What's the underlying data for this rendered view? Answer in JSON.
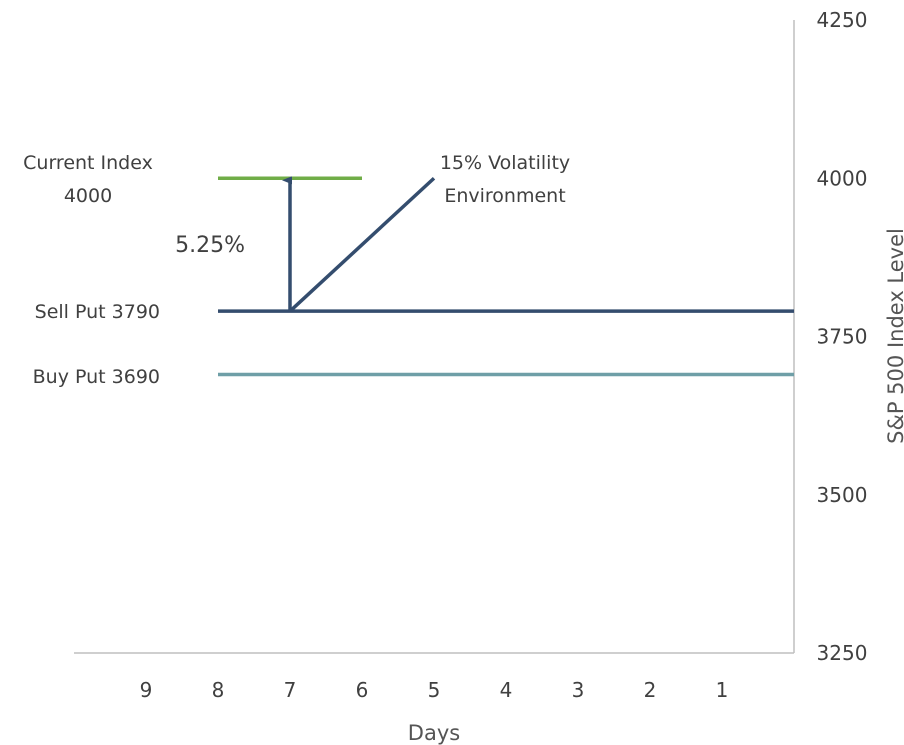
{
  "chart_data": {
    "type": "line",
    "x_reversed": true,
    "xlabel": "Days",
    "ylabel": "S&P 500 Index Level",
    "ylim": [
      3250,
      4250
    ],
    "y_ticks": [
      3250,
      3500,
      3750,
      4000,
      4250
    ],
    "y_ticks_labels": [
      "3250",
      "3500",
      "3750",
      "4000",
      "4250"
    ],
    "x_ticks": [
      9,
      8,
      7,
      6,
      5,
      4,
      3,
      2,
      1
    ],
    "x_ticks_labels": [
      "9",
      "8",
      "7",
      "6",
      "5",
      "4",
      "3",
      "2",
      "1"
    ],
    "x_range": [
      10,
      0
    ],
    "y_axis_position": "right",
    "grid": false,
    "series": [
      {
        "x": [
          8,
          6
        ],
        "y": [
          4000,
          4000
        ],
        "color": "#70ad47"
      },
      {
        "x": [
          8,
          0
        ],
        "y": [
          3790,
          3790
        ],
        "color": "#344d6e"
      },
      {
        "x": [
          8,
          0
        ],
        "y": [
          3690,
          3690
        ],
        "color": "#6f9fa7"
      },
      {
        "x": [
          7,
          5
        ],
        "y": [
          3790,
          4000
        ],
        "color": "#344d6e"
      }
    ],
    "arrow": {
      "x": 7,
      "y_from": 3790,
      "y_to": 4000,
      "color": "#344d6e"
    },
    "annotations": {
      "current_index_line1": "Current Index",
      "current_index_line2": "4000",
      "sell_put": "Sell Put 3790",
      "buy_put": "Buy Put 3690",
      "pct": "5.25%",
      "vol_line1": "15% Volatility",
      "vol_line2": "Environment"
    },
    "colors": {
      "axis": "#bfbfbf",
      "text": "#404040"
    }
  }
}
